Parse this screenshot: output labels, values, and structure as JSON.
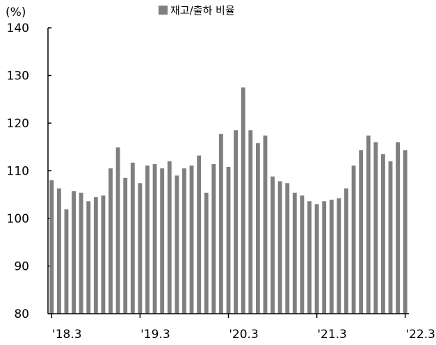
{
  "chart_data": {
    "type": "bar",
    "title": "",
    "ylabel": "(%)",
    "xlabel": "",
    "ylim": [
      80,
      140
    ],
    "yticks": [
      80,
      90,
      100,
      110,
      120,
      130,
      140
    ],
    "x_tick_labels": [
      {
        "index": 0,
        "label": "'18.3"
      },
      {
        "index": 12,
        "label": "'19.3"
      },
      {
        "index": 24,
        "label": "'20.3"
      },
      {
        "index": 36,
        "label": "'21.3"
      },
      {
        "index": 48,
        "label": "'22.3"
      }
    ],
    "series": [
      {
        "name": "재고/출하 비율",
        "color": "#7f7f7f",
        "values": [
          108.0,
          106.3,
          101.9,
          105.7,
          105.4,
          103.6,
          104.5,
          104.8,
          110.5,
          114.9,
          108.5,
          111.7,
          107.4,
          111.1,
          111.4,
          110.5,
          112.0,
          109.0,
          110.5,
          111.1,
          113.2,
          105.4,
          111.4,
          117.7,
          110.8,
          118.5,
          127.5,
          118.5,
          115.8,
          117.4,
          108.8,
          107.8,
          107.4,
          105.4,
          104.8,
          103.6,
          103.0,
          103.6,
          103.9,
          104.2,
          106.3,
          111.1,
          114.3,
          117.4,
          116.0,
          113.5,
          112.0,
          116.0,
          114.3
        ]
      }
    ],
    "legend": {
      "position": "top"
    }
  }
}
